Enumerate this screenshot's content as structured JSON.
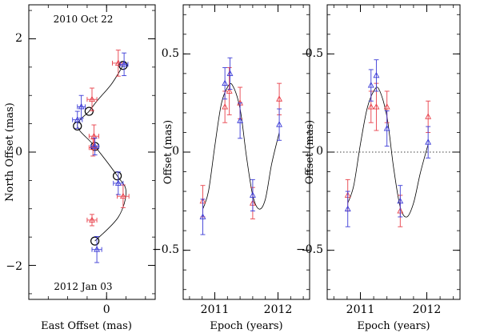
{
  "chart_data": [
    {
      "type": "scatter",
      "panel": "left",
      "title_top": "2010 Oct 22",
      "title_bottom": "2012 Jan 03",
      "xlabel": "East Offset (mas)",
      "ylabel": "North Offset (mas)",
      "xlim": [
        0.8,
        -0.5
      ],
      "ylim": [
        -2.6,
        2.6
      ],
      "xticks": [
        {
          "v": 0,
          "label": "0"
        }
      ],
      "yticks": [
        {
          "v": 2,
          "label": "2"
        },
        {
          "v": 0,
          "label": "0"
        },
        {
          "v": -2,
          "label": "−2"
        }
      ],
      "colors": {
        "red": "#e8404a",
        "blue": "#3b3bd6",
        "model": "#000000"
      },
      "series": [
        {
          "name": "red",
          "points": [
            {
              "x": -0.12,
              "y": 1.57,
              "ex": 0.06,
              "ey": 0.23
            },
            {
              "x": 0.15,
              "y": 0.93,
              "ex": 0.05,
              "ey": 0.2
            },
            {
              "x": 0.13,
              "y": 0.28,
              "ex": 0.05,
              "ey": 0.2
            },
            {
              "x": 0.14,
              "y": 0.08,
              "ex": 0.04,
              "ey": 0.15
            },
            {
              "x": -0.17,
              "y": -0.78,
              "ex": 0.06,
              "ey": 0.2
            },
            {
              "x": 0.15,
              "y": -1.2,
              "ex": 0.05,
              "ey": 0.1
            }
          ]
        },
        {
          "name": "blue",
          "points": [
            {
              "x": -0.18,
              "y": 1.55,
              "ex": 0.04,
              "ey": 0.2
            },
            {
              "x": 0.26,
              "y": 0.8,
              "ex": 0.04,
              "ey": 0.2
            },
            {
              "x": 0.3,
              "y": 0.57,
              "ex": 0.05,
              "ey": 0.15
            },
            {
              "x": 0.12,
              "y": 0.1,
              "ex": 0.04,
              "ey": 0.15
            },
            {
              "x": -0.12,
              "y": -0.55,
              "ex": 0.05,
              "ey": 0.2
            },
            {
              "x": 0.1,
              "y": -1.72,
              "ex": 0.05,
              "ey": 0.23
            }
          ]
        }
      ],
      "model_points": [
        {
          "x": -0.17,
          "y": 1.53
        },
        {
          "x": 0.18,
          "y": 0.72
        },
        {
          "x": 0.3,
          "y": 0.46
        },
        {
          "x": 0.12,
          "y": 0.1
        },
        {
          "x": -0.11,
          "y": -0.42
        },
        {
          "x": 0.12,
          "y": -1.57
        }
      ],
      "model_curve": [
        [
          -0.17,
          1.53
        ],
        [
          -0.05,
          1.2
        ],
        [
          0.1,
          0.9
        ],
        [
          0.18,
          0.72
        ],
        [
          0.3,
          0.46
        ],
        [
          0.12,
          0.1
        ],
        [
          -0.11,
          -0.42
        ],
        [
          -0.2,
          -0.7
        ],
        [
          -0.12,
          -1.15
        ],
        [
          0.12,
          -1.57
        ]
      ]
    },
    {
      "type": "scatter",
      "panel": "middle",
      "xlabel": "Epoch (years)",
      "ylabel": "Offset (mas)",
      "xlim": [
        2010.5,
        2012.5
      ],
      "ylim": [
        -0.75,
        0.75
      ],
      "xticks": [
        {
          "v": 2011,
          "label": "2011"
        },
        {
          "v": 2012,
          "label": "2012"
        }
      ],
      "yticks": [
        {
          "v": 0.5,
          "label": "0.5"
        },
        {
          "v": 0,
          "label": "0"
        },
        {
          "v": -0.5,
          "label": "−0.5"
        }
      ],
      "zero_line": false,
      "series": [
        {
          "name": "red",
          "points": [
            {
              "x": 2010.81,
              "y": -0.25,
              "ey": 0.08
            },
            {
              "x": 2011.16,
              "y": 0.23,
              "ey": 0.08
            },
            {
              "x": 2011.23,
              "y": 0.31,
              "ey": 0.12
            },
            {
              "x": 2011.4,
              "y": 0.25,
              "ey": 0.08
            },
            {
              "x": 2011.6,
              "y": -0.26,
              "ey": 0.08
            },
            {
              "x": 2012.02,
              "y": 0.27,
              "ey": 0.08
            }
          ]
        },
        {
          "name": "blue",
          "points": [
            {
              "x": 2010.81,
              "y": -0.33,
              "ey": 0.09
            },
            {
              "x": 2011.16,
              "y": 0.35,
              "ey": 0.08
            },
            {
              "x": 2011.24,
              "y": 0.4,
              "ey": 0.08
            },
            {
              "x": 2011.4,
              "y": 0.16,
              "ey": 0.09
            },
            {
              "x": 2011.6,
              "y": -0.22,
              "ey": 0.08
            },
            {
              "x": 2012.02,
              "y": 0.14,
              "ey": 0.08
            }
          ]
        }
      ],
      "model_curve": [
        [
          2010.81,
          -0.29
        ],
        [
          2010.9,
          -0.2
        ],
        [
          2011.0,
          0.03
        ],
        [
          2011.1,
          0.24
        ],
        [
          2011.2,
          0.33
        ],
        [
          2011.28,
          0.34
        ],
        [
          2011.4,
          0.22
        ],
        [
          2011.5,
          -0.02
        ],
        [
          2011.6,
          -0.22
        ],
        [
          2011.7,
          -0.29
        ],
        [
          2011.8,
          -0.24
        ],
        [
          2011.9,
          -0.06
        ],
        [
          2012.02,
          0.1
        ]
      ]
    },
    {
      "type": "scatter",
      "panel": "right",
      "xlabel": "Epoch (years)",
      "ylabel": "Offset (mas)",
      "xlim": [
        2010.5,
        2012.5
      ],
      "ylim": [
        -0.75,
        0.75
      ],
      "xticks": [
        {
          "v": 2011,
          "label": "2011"
        },
        {
          "v": 2012,
          "label": "2012"
        }
      ],
      "yticks": [
        {
          "v": 0.5,
          "label": "0.5"
        },
        {
          "v": 0,
          "label": "0"
        },
        {
          "v": -0.5,
          "label": "−0.5"
        }
      ],
      "zero_line": true,
      "series": [
        {
          "name": "red",
          "points": [
            {
              "x": 2010.81,
              "y": -0.22,
              "ey": 0.08
            },
            {
              "x": 2011.16,
              "y": 0.23,
              "ey": 0.08
            },
            {
              "x": 2011.24,
              "y": 0.23,
              "ey": 0.12
            },
            {
              "x": 2011.4,
              "y": 0.23,
              "ey": 0.08
            },
            {
              "x": 2011.6,
              "y": -0.3,
              "ey": 0.08
            },
            {
              "x": 2012.02,
              "y": 0.18,
              "ey": 0.08
            }
          ]
        },
        {
          "name": "blue",
          "points": [
            {
              "x": 2010.81,
              "y": -0.29,
              "ey": 0.09
            },
            {
              "x": 2011.16,
              "y": 0.34,
              "ey": 0.08
            },
            {
              "x": 2011.24,
              "y": 0.39,
              "ey": 0.08
            },
            {
              "x": 2011.4,
              "y": 0.12,
              "ey": 0.09
            },
            {
              "x": 2011.6,
              "y": -0.25,
              "ey": 0.08
            },
            {
              "x": 2012.02,
              "y": 0.05,
              "ey": 0.08
            }
          ]
        }
      ],
      "model_curve": [
        [
          2010.81,
          -0.26
        ],
        [
          2010.9,
          -0.17
        ],
        [
          2011.0,
          0.04
        ],
        [
          2011.1,
          0.22
        ],
        [
          2011.2,
          0.31
        ],
        [
          2011.28,
          0.32
        ],
        [
          2011.4,
          0.18
        ],
        [
          2011.5,
          -0.08
        ],
        [
          2011.6,
          -0.28
        ],
        [
          2011.7,
          -0.33
        ],
        [
          2011.8,
          -0.26
        ],
        [
          2011.9,
          -0.11
        ],
        [
          2012.02,
          0.04
        ]
      ]
    }
  ]
}
